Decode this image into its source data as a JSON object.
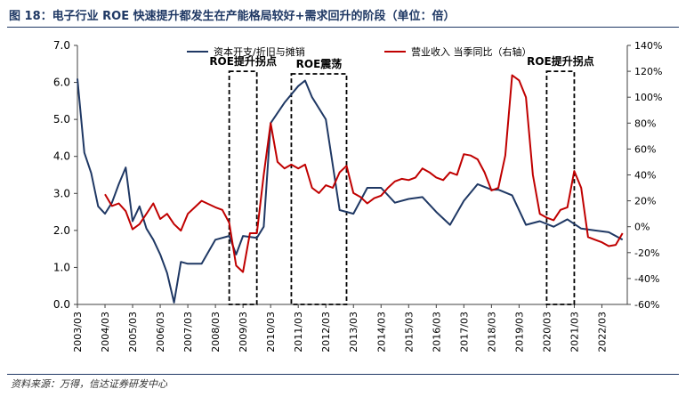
{
  "title": "图 18：电子行业 ROE 快速提升都发生在产能格局较好+需求回升的阶段（单位：倍）",
  "source": "资料来源：万得，信达证券研发中心",
  "chart_data": {
    "type": "line",
    "x_categories": [
      "2003/03",
      "2004/03",
      "2005/03",
      "2006/03",
      "2007/03",
      "2008/03",
      "2009/03",
      "2010/03",
      "2011/03",
      "2012/03",
      "2013/03",
      "2014/03",
      "2015/03",
      "2016/03",
      "2017/03",
      "2018/03",
      "2019/03",
      "2020/03",
      "2021/03",
      "2022/03"
    ],
    "left_axis": {
      "ylim": [
        0,
        7
      ],
      "ticks": [
        "0.0",
        "1.0",
        "2.0",
        "3.0",
        "4.0",
        "5.0",
        "6.0",
        "7.0"
      ]
    },
    "right_axis": {
      "ylim": [
        -60,
        140
      ],
      "ticks": [
        "-60%",
        "-40%",
        "-20%",
        "0%",
        "20%",
        "40%",
        "60%",
        "80%",
        "100%",
        "120%",
        "140%"
      ]
    },
    "series": [
      {
        "name": "资本开支/折旧与摊销",
        "axis": "left",
        "color": "#1f3864",
        "x": [
          2003.0,
          2003.25,
          2003.5,
          2003.75,
          2004.0,
          2004.25,
          2004.5,
          2004.75,
          2005.0,
          2005.25,
          2005.5,
          2005.75,
          2006.0,
          2006.25,
          2006.5,
          2006.75,
          2007.0,
          2007.5,
          2008.0,
          2008.5,
          2008.75,
          2009.0,
          2009.5,
          2009.75,
          2010.0,
          2010.5,
          2011.0,
          2011.25,
          2011.5,
          2012.0,
          2012.5,
          2013.0,
          2013.25,
          2013.5,
          2014.0,
          2014.5,
          2015.0,
          2015.5,
          2016.0,
          2016.5,
          2017.0,
          2017.5,
          2018.0,
          2018.25,
          2018.75,
          2019.25,
          2019.75,
          2020.25,
          2020.75,
          2021.25,
          2021.75,
          2022.25,
          2022.75
        ],
        "y": [
          6.1,
          4.1,
          3.55,
          2.65,
          2.45,
          2.75,
          3.25,
          3.7,
          2.25,
          2.65,
          2.05,
          1.75,
          1.35,
          0.85,
          0.05,
          1.15,
          1.1,
          1.1,
          1.75,
          1.85,
          1.35,
          1.85,
          1.8,
          2.1,
          4.9,
          5.45,
          5.9,
          6.05,
          5.6,
          5.0,
          2.55,
          2.45,
          2.8,
          3.15,
          3.15,
          2.75,
          2.85,
          2.9,
          2.5,
          2.15,
          2.8,
          3.25,
          3.1,
          3.1,
          2.95,
          2.15,
          2.25,
          2.1,
          2.3,
          2.05,
          2.0,
          1.95,
          1.75
        ]
      },
      {
        "name": "营业收入 当季同比（右轴）",
        "axis": "right",
        "color": "#c00000",
        "x": [
          2004.0,
          2004.25,
          2004.5,
          2004.75,
          2005.0,
          2005.25,
          2005.5,
          2005.75,
          2006.0,
          2006.25,
          2006.5,
          2006.75,
          2007.0,
          2007.25,
          2007.5,
          2008.0,
          2008.25,
          2008.5,
          2008.75,
          2009.0,
          2009.25,
          2009.5,
          2009.75,
          2010.0,
          2010.25,
          2010.5,
          2010.75,
          2011.0,
          2011.25,
          2011.5,
          2011.75,
          2012.0,
          2012.25,
          2012.5,
          2012.75,
          2013.0,
          2013.25,
          2013.5,
          2013.75,
          2014.0,
          2014.25,
          2014.5,
          2014.75,
          2015.0,
          2015.25,
          2015.5,
          2015.75,
          2016.0,
          2016.25,
          2016.5,
          2016.75,
          2017.0,
          2017.25,
          2017.5,
          2017.75,
          2018.0,
          2018.25,
          2018.5,
          2018.75,
          2019.0,
          2019.25,
          2019.5,
          2019.75,
          2020.0,
          2020.25,
          2020.5,
          2020.75,
          2021.0,
          2021.25,
          2021.5,
          2021.75,
          2022.0,
          2022.25,
          2022.5,
          2022.75
        ],
        "y": [
          25,
          16,
          18,
          12,
          -2,
          2,
          10,
          18,
          6,
          10,
          2,
          -3,
          10,
          15,
          20,
          15,
          13,
          3,
          -30,
          -35,
          -5,
          -5,
          40,
          80,
          50,
          45,
          48,
          45,
          48,
          30,
          26,
          32,
          30,
          42,
          47,
          26,
          23,
          18,
          22,
          24,
          30,
          35,
          37,
          36,
          38,
          45,
          42,
          38,
          36,
          42,
          40,
          56,
          55,
          52,
          42,
          28,
          30,
          55,
          117,
          113,
          100,
          40,
          10,
          7,
          5,
          13,
          15,
          43,
          30,
          -8,
          -10,
          -12,
          -15,
          -14,
          -5
        ]
      }
    ],
    "annotations": [
      {
        "label": "ROE提升拐点",
        "x_range": [
          2008.5,
          2009.5
        ],
        "y_range": [
          -60,
          120
        ]
      },
      {
        "label": "ROE震荡",
        "x_range": [
          2010.75,
          2012.75
        ],
        "y_range": [
          -60,
          118
        ]
      },
      {
        "label": "ROE提升拐点",
        "x_range": [
          2020.0,
          2021.0
        ],
        "y_range": [
          -60,
          120
        ]
      }
    ],
    "legend": "top-center",
    "grid": false
  }
}
